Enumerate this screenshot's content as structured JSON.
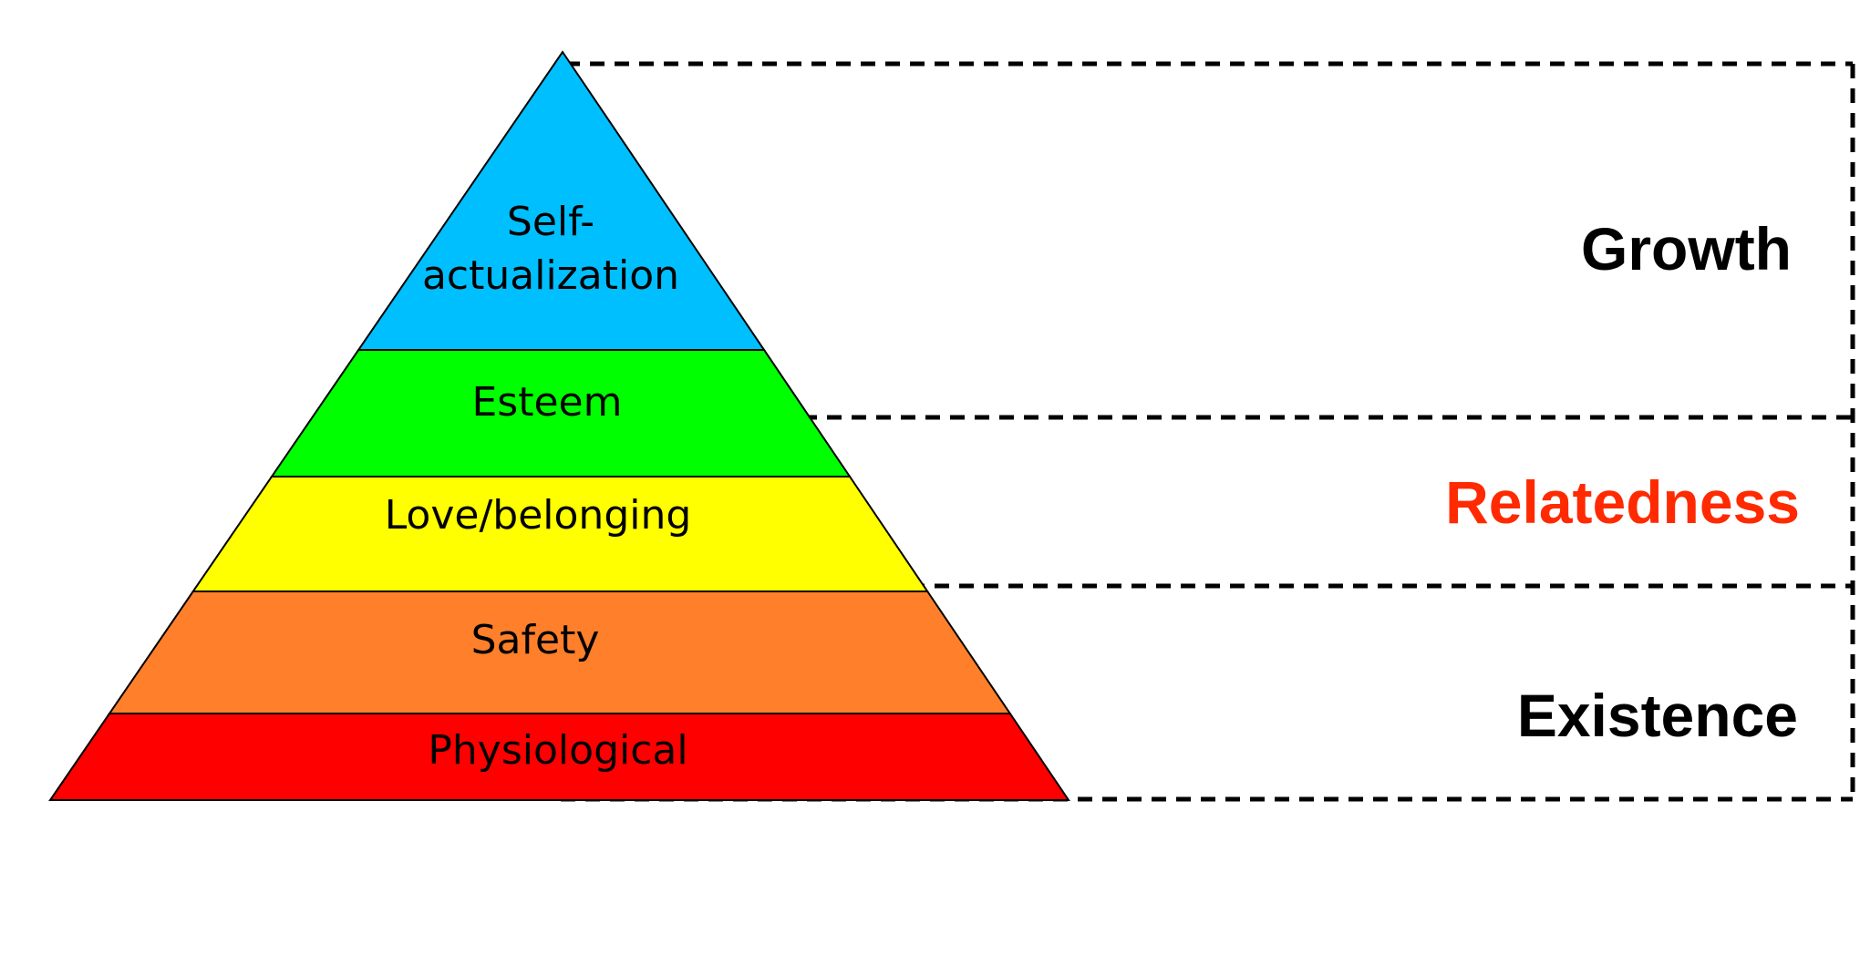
{
  "pyramid": {
    "levels": [
      {
        "label_lines": [
          "Self-",
          "actualization"
        ],
        "color": "#00BFFF"
      },
      {
        "label_lines": [
          "Esteem"
        ],
        "color": "#00FF00"
      },
      {
        "label_lines": [
          "Love/belonging"
        ],
        "color": "#FFFF00"
      },
      {
        "label_lines": [
          "Safety"
        ],
        "color": "#FF7F2A"
      },
      {
        "label_lines": [
          "Physiological"
        ],
        "color": "#FF0000"
      }
    ]
  },
  "groups": [
    {
      "label": "Growth",
      "color": "#000000"
    },
    {
      "label": "Relatedness",
      "color": "#FF2A00"
    },
    {
      "label": "Existence",
      "color": "#000000"
    }
  ]
}
